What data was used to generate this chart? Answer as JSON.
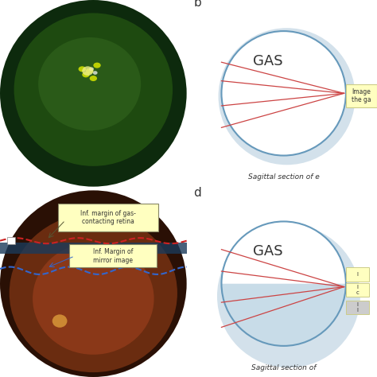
{
  "bg_color": "#ffffff",
  "label_b": "b",
  "label_d": "d",
  "gas_label": "GAS",
  "sagittal_text_b": "Sagittal section of e",
  "sagittal_text_d": "Sagittal section of",
  "image_label_b": "Image\nthe ga",
  "image_labels_d": [
    "I",
    "I\nc",
    "I\nI"
  ],
  "top_photo_bg": "#1a3a1a",
  "bottom_photo_bg": "#5a2a10",
  "red_dot_color": "#cc2222",
  "blue_dot_color": "#3366cc",
  "eye_circle_color": "#a8c4d8",
  "eye_outline_color": "#8ab0c8",
  "gas_fill": "#ffffff",
  "gas_outline": "#6699bb",
  "red_line_color": "#cc4444",
  "annotation_bg": "#ffffc0",
  "annotation_border": "#cccc88",
  "inf_margin_gas_text": "Inf. margin of gas-\ncontacting retina",
  "inf_margin_mirror_text": "Inf. Margin of\nmirror image",
  "fluid_fill_d": "#c8dce8"
}
